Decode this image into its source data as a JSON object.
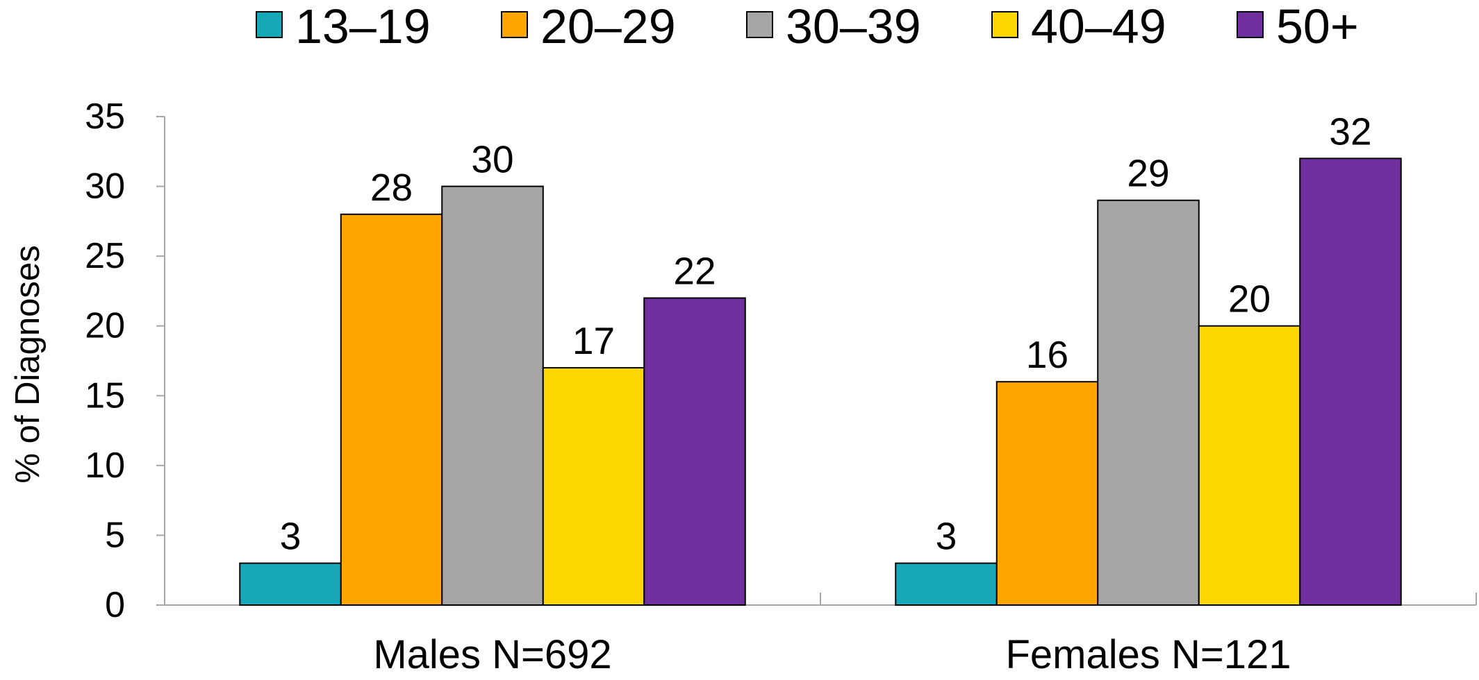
{
  "chart_data": {
    "type": "bar",
    "categories": [
      "Males N=692",
      "Females N=121"
    ],
    "series": [
      {
        "name": "13–19",
        "color": "#17A8B8",
        "values": [
          3,
          3
        ]
      },
      {
        "name": "20–29",
        "color": "#FFA500",
        "values": [
          28,
          16
        ]
      },
      {
        "name": "30–39",
        "color": "#A6A6A6",
        "values": [
          30,
          29
        ]
      },
      {
        "name": "40–49",
        "color": "#FFD700",
        "values": [
          17,
          20
        ]
      },
      {
        "name": "50+",
        "color": "#7030A0",
        "values": [
          22,
          32
        ]
      }
    ],
    "title": "",
    "xlabel": "",
    "ylabel": "% of Diagnoses",
    "ylim": [
      0,
      35
    ],
    "yticks": [
      0,
      5,
      10,
      15,
      20,
      25,
      30,
      35
    ],
    "grid": false,
    "legend": "top-center",
    "data_labels": true
  }
}
